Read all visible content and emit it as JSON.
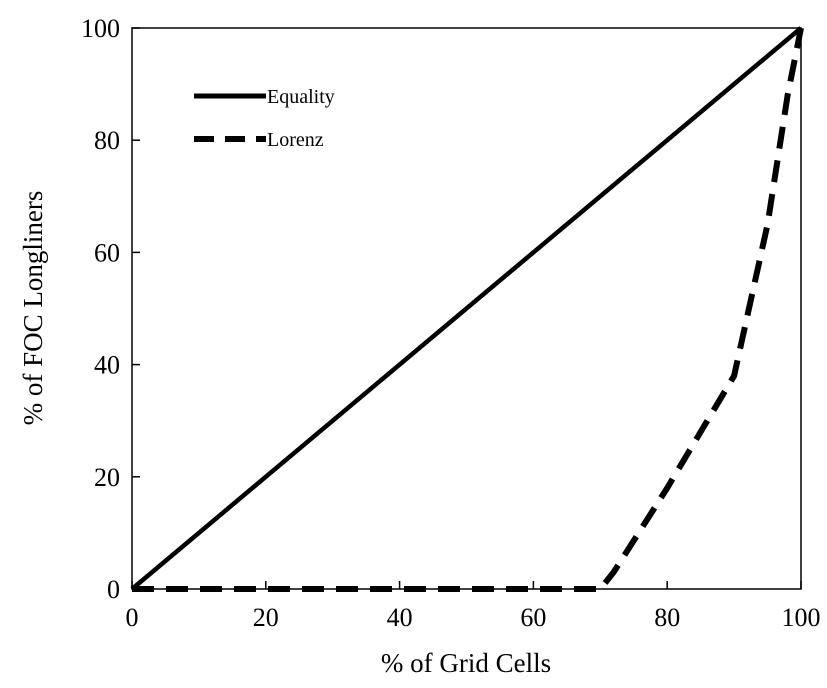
{
  "chart_data": {
    "type": "line",
    "xlabel": "% of Grid Cells",
    "ylabel": "% of FOC Longliners",
    "xlim": [
      0,
      100
    ],
    "ylim": [
      0,
      100
    ],
    "xticks": [
      "0",
      "20",
      "40",
      "60",
      "80",
      "100"
    ],
    "yticks": [
      "0",
      "20",
      "40",
      "60",
      "80",
      "100"
    ],
    "grid": false,
    "legend_position": "top-left",
    "series": [
      {
        "name": "Equality",
        "style": "solid",
        "color": "#000000",
        "x": [
          0,
          100
        ],
        "y": [
          0,
          100
        ]
      },
      {
        "name": "Lorenz",
        "style": "dashed",
        "color": "#000000",
        "x": [
          0,
          70,
          72,
          80,
          90,
          95,
          98,
          100
        ],
        "y": [
          0,
          0,
          3,
          18,
          38,
          65,
          88,
          100
        ]
      }
    ]
  }
}
